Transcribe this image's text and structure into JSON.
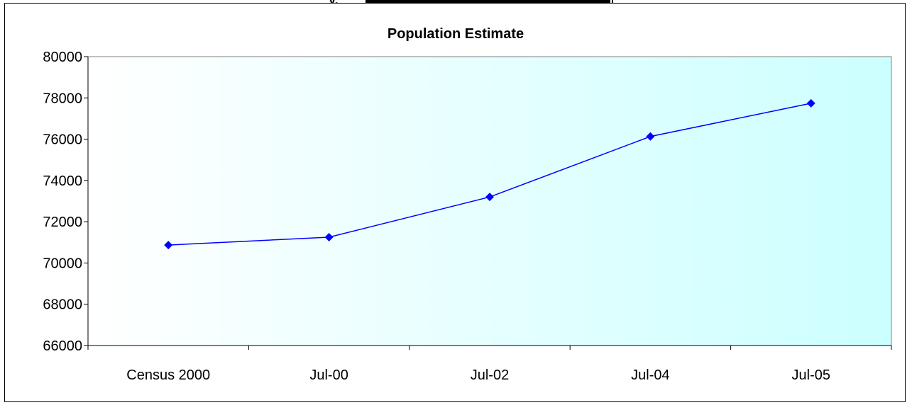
{
  "header_fragment": "y,",
  "chart_data": {
    "type": "line",
    "title": "Population Estimate",
    "categories": [
      "Census 2000",
      "Jul-00",
      "Jul-02",
      "Jul-04",
      "Jul-05"
    ],
    "series": [
      {
        "values": [
          70870,
          71250,
          73200,
          76130,
          77740
        ]
      }
    ],
    "ylim": [
      66000,
      80000
    ],
    "yticks": [
      66000,
      68000,
      70000,
      72000,
      74000,
      76000,
      78000,
      80000
    ],
    "grid": false,
    "legend": "none",
    "colors": {
      "line": "#0000ff",
      "marker": "#0000ff",
      "plot_bg_start": "#ffffff",
      "plot_bg_end": "#ccffff"
    }
  }
}
